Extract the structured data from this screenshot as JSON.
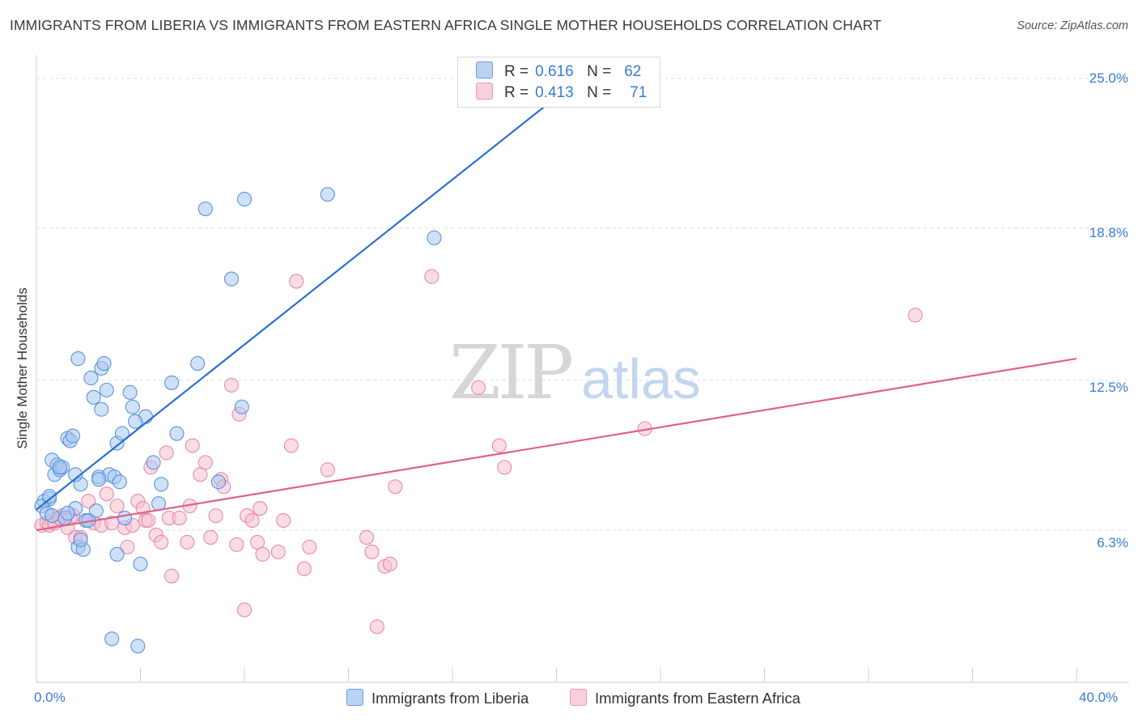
{
  "title": "IMMIGRANTS FROM LIBERIA VS IMMIGRANTS FROM EASTERN AFRICA SINGLE MOTHER HOUSEHOLDS CORRELATION CHART",
  "source": "Source: ZipAtlas.com",
  "watermark": "ZIPatlas",
  "legend_top": [
    {
      "r_label": "R =",
      "r_value": "0.616",
      "n_label": "N =",
      "n_value": "62"
    },
    {
      "r_label": "R =",
      "r_value": "0.413",
      "n_label": "N =",
      "n_value": "71"
    }
  ],
  "legend_bottom": [
    "Immigrants from Liberia",
    "Immigrants from Eastern Africa"
  ],
  "y_ticks": [
    "25.0%",
    "18.8%",
    "12.5%",
    "6.3%"
  ],
  "x_ticks": [
    "0.0%",
    "40.0%"
  ],
  "colors": {
    "liberia_fill": "#a9c8f0",
    "liberia_stroke": "#5a93dd",
    "liberia_line": "#2a6fcf",
    "eafrica_fill": "#f6bfd0",
    "eafrica_stroke": "#e88aa8",
    "eafrica_line": "#e0608a",
    "tick_text": "#3a7bd5",
    "grid": "#dcdcdc"
  },
  "chart_data": {
    "type": "scatter",
    "title": "IMMIGRANTS FROM LIBERIA VS IMMIGRANTS FROM EASTERN AFRICA SINGLE MOTHER HOUSEHOLDS CORRELATION CHART",
    "xlabel": "",
    "ylabel": "Single Mother Households",
    "xlim": [
      0,
      40
    ],
    "ylim": [
      0,
      25.9
    ],
    "y_gridlines": [
      6.3,
      12.5,
      18.8,
      25.0
    ],
    "grid": true,
    "legend_position": "top-center",
    "series": [
      {
        "name": "Immigrants from Liberia",
        "R": 0.616,
        "N": 62,
        "trend": {
          "x": [
            0,
            20.2
          ],
          "y": [
            7.15,
            24.4
          ]
        },
        "points": [
          [
            0.3,
            7.5
          ],
          [
            0.5,
            7.6
          ],
          [
            0.2,
            7.3
          ],
          [
            0.4,
            7.0
          ],
          [
            0.6,
            9.2
          ],
          [
            0.8,
            9.0
          ],
          [
            0.7,
            8.6
          ],
          [
            0.9,
            8.8
          ],
          [
            1.0,
            8.9
          ],
          [
            1.2,
            10.1
          ],
          [
            1.3,
            10.0
          ],
          [
            1.4,
            10.2
          ],
          [
            1.1,
            6.8
          ],
          [
            1.5,
            7.2
          ],
          [
            1.6,
            5.6
          ],
          [
            1.8,
            5.5
          ],
          [
            1.6,
            13.4
          ],
          [
            1.7,
            8.2
          ],
          [
            1.9,
            6.7
          ],
          [
            2.1,
            12.6
          ],
          [
            2.2,
            11.8
          ],
          [
            2.3,
            7.1
          ],
          [
            2.4,
            8.5
          ],
          [
            2.5,
            13.0
          ],
          [
            2.5,
            11.3
          ],
          [
            2.6,
            13.2
          ],
          [
            2.7,
            12.1
          ],
          [
            2.8,
            8.6
          ],
          [
            3.0,
            8.5
          ],
          [
            3.1,
            9.9
          ],
          [
            3.2,
            8.3
          ],
          [
            3.3,
            10.3
          ],
          [
            3.4,
            6.8
          ],
          [
            3.6,
            12.0
          ],
          [
            3.7,
            11.4
          ],
          [
            4.2,
            11.0
          ],
          [
            4.5,
            9.1
          ],
          [
            4.7,
            7.4
          ],
          [
            4.8,
            8.2
          ],
          [
            5.2,
            12.4
          ],
          [
            5.4,
            10.3
          ],
          [
            6.2,
            13.2
          ],
          [
            6.5,
            19.6
          ],
          [
            7.0,
            8.3
          ],
          [
            7.5,
            16.7
          ],
          [
            7.9,
            11.4
          ],
          [
            8.0,
            20.0
          ],
          [
            11.2,
            20.2
          ],
          [
            15.3,
            18.4
          ],
          [
            2.9,
            1.8
          ],
          [
            3.9,
            1.5
          ],
          [
            3.1,
            5.3
          ],
          [
            4.0,
            4.9
          ],
          [
            1.7,
            5.9
          ],
          [
            2.0,
            6.7
          ],
          [
            0.5,
            7.7
          ],
          [
            0.9,
            8.9
          ],
          [
            1.2,
            7.0
          ],
          [
            2.4,
            8.4
          ],
          [
            1.5,
            8.6
          ],
          [
            0.6,
            6.9
          ],
          [
            3.8,
            10.8
          ]
        ]
      },
      {
        "name": "Immigrants from Eastern Africa",
        "R": 0.413,
        "N": 71,
        "trend": {
          "x": [
            0,
            40
          ],
          "y": [
            6.3,
            13.4
          ]
        },
        "points": [
          [
            0.2,
            6.5
          ],
          [
            0.4,
            6.6
          ],
          [
            0.6,
            6.7
          ],
          [
            0.8,
            6.8
          ],
          [
            1.0,
            6.9
          ],
          [
            1.2,
            6.4
          ],
          [
            1.4,
            6.9
          ],
          [
            0.5,
            6.5
          ],
          [
            0.7,
            6.6
          ],
          [
            0.9,
            6.8
          ],
          [
            1.5,
            6.0
          ],
          [
            1.7,
            6.0
          ],
          [
            1.9,
            6.7
          ],
          [
            2.0,
            7.5
          ],
          [
            2.2,
            6.6
          ],
          [
            2.5,
            6.5
          ],
          [
            2.7,
            7.8
          ],
          [
            2.9,
            6.6
          ],
          [
            3.1,
            7.3
          ],
          [
            3.4,
            6.4
          ],
          [
            3.5,
            5.6
          ],
          [
            3.7,
            6.5
          ],
          [
            3.9,
            7.5
          ],
          [
            4.1,
            7.2
          ],
          [
            4.2,
            6.7
          ],
          [
            4.3,
            6.7
          ],
          [
            4.4,
            8.9
          ],
          [
            4.6,
            6.1
          ],
          [
            4.8,
            5.8
          ],
          [
            5.0,
            9.5
          ],
          [
            5.1,
            6.8
          ],
          [
            5.2,
            4.4
          ],
          [
            5.5,
            6.8
          ],
          [
            5.8,
            5.8
          ],
          [
            5.9,
            7.3
          ],
          [
            6.0,
            9.8
          ],
          [
            6.3,
            8.6
          ],
          [
            6.5,
            9.1
          ],
          [
            6.7,
            6.0
          ],
          [
            6.9,
            6.9
          ],
          [
            7.1,
            8.4
          ],
          [
            7.2,
            8.1
          ],
          [
            7.5,
            12.3
          ],
          [
            7.7,
            5.7
          ],
          [
            7.8,
            11.1
          ],
          [
            8.0,
            3.0
          ],
          [
            8.1,
            6.9
          ],
          [
            8.3,
            6.7
          ],
          [
            8.5,
            5.8
          ],
          [
            8.6,
            7.2
          ],
          [
            8.7,
            5.3
          ],
          [
            9.3,
            5.4
          ],
          [
            9.5,
            6.7
          ],
          [
            9.8,
            9.8
          ],
          [
            10.0,
            16.6
          ],
          [
            10.3,
            4.7
          ],
          [
            10.5,
            5.6
          ],
          [
            11.2,
            8.8
          ],
          [
            12.7,
            6.0
          ],
          [
            12.9,
            5.4
          ],
          [
            13.1,
            2.3
          ],
          [
            13.4,
            4.8
          ],
          [
            13.6,
            4.9
          ],
          [
            13.8,
            8.1
          ],
          [
            15.2,
            16.8
          ],
          [
            17.0,
            12.2
          ],
          [
            17.8,
            9.8
          ],
          [
            18.0,
            8.9
          ],
          [
            23.4,
            10.5
          ],
          [
            33.8,
            15.2
          ],
          [
            1.3,
            6.8
          ]
        ]
      }
    ]
  }
}
